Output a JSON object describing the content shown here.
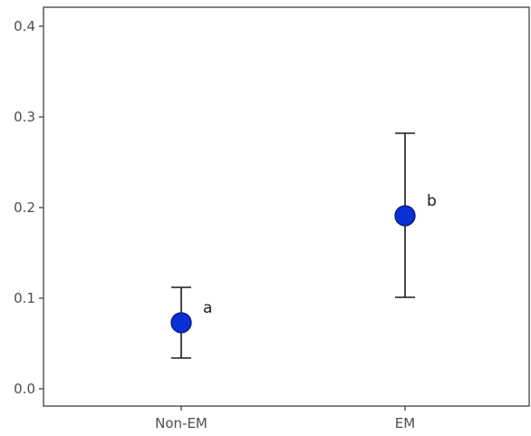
{
  "chart_data": {
    "type": "scatter",
    "title": "",
    "xlabel": "",
    "ylabel": "",
    "categories": [
      "Non-EM",
      "EM"
    ],
    "values": [
      0.073,
      0.191
    ],
    "error_lower": [
      0.034,
      0.101
    ],
    "error_upper": [
      0.112,
      0.282
    ],
    "annotations": [
      "a",
      "b"
    ],
    "ylim": [
      -0.018,
      0.42
    ],
    "yticks": [
      0.0,
      0.1,
      0.2,
      0.3,
      0.4
    ],
    "ytick_labels": [
      "0.0",
      "0.1",
      "0.2",
      "0.3",
      "0.4"
    ],
    "grid": false,
    "legend": "none",
    "colors": {
      "point_fill": "#0a2fd6",
      "point_stroke": "#0a1a6e",
      "errorbar": "#1a1a1a",
      "panel_border": "#333333"
    }
  }
}
